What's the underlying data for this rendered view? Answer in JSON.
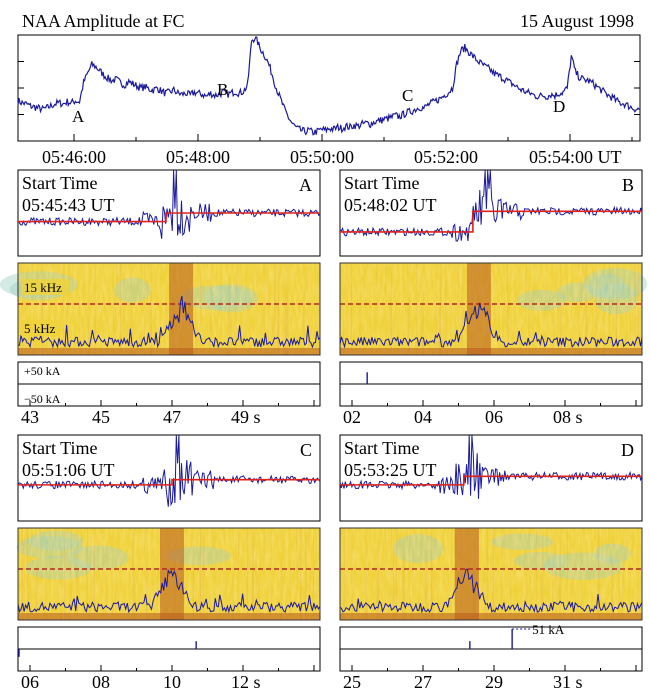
{
  "chart_data": [
    {
      "type": "line",
      "title": "NAA Amplitude at FC",
      "date": "15 August 1998",
      "x_ticks": [
        "05:46:00",
        "05:48:00",
        "05:50:00",
        "05:52:00",
        "05:54:00 UT"
      ],
      "event_labels": [
        "A",
        "B",
        "C",
        "D"
      ],
      "series": [
        {
          "values": [
            0.38,
            0.36,
            0.35,
            0.33,
            0.32,
            0.31,
            0.3,
            0.31,
            0.33,
            0.35,
            0.36,
            0.35,
            0.37,
            0.36,
            0.38,
            0.37,
            0.55,
            0.64,
            0.72,
            0.7,
            0.66,
            0.62,
            0.59,
            0.57,
            0.58,
            0.55,
            0.53,
            0.56,
            0.54,
            0.52,
            0.5,
            0.51,
            0.49,
            0.48,
            0.5,
            0.47,
            0.45,
            0.46,
            0.48,
            0.45,
            0.44,
            0.45,
            0.43,
            0.46,
            0.45,
            0.44,
            0.42,
            0.45,
            0.43,
            0.44,
            0.46,
            0.44,
            0.45,
            0.47,
            0.45,
            0.47,
            0.52,
            0.95,
            0.98,
            0.88,
            0.82,
            0.74,
            0.63,
            0.5,
            0.4,
            0.3,
            0.22,
            0.16,
            0.12,
            0.1,
            0.09,
            0.1,
            0.08,
            0.09,
            0.11,
            0.1,
            0.12,
            0.11,
            0.13,
            0.12,
            0.14,
            0.13,
            0.15,
            0.14,
            0.16,
            0.17,
            0.16,
            0.18,
            0.19,
            0.2,
            0.21,
            0.22,
            0.24,
            0.23,
            0.25,
            0.27,
            0.28,
            0.3,
            0.32,
            0.31,
            0.34,
            0.36,
            0.38,
            0.4,
            0.43,
            0.46,
            0.5,
            0.72,
            0.85,
            0.88,
            0.84,
            0.8,
            0.76,
            0.73,
            0.7,
            0.68,
            0.64,
            0.62,
            0.6,
            0.58,
            0.55,
            0.53,
            0.5,
            0.48,
            0.46,
            0.45,
            0.43,
            0.42,
            0.43,
            0.42,
            0.44,
            0.43,
            0.45,
            0.46,
            0.5,
            0.8,
            0.65,
            0.6,
            0.58,
            0.57,
            0.55,
            0.52,
            0.49,
            0.46,
            0.43,
            0.41,
            0.38,
            0.36,
            0.35,
            0.33,
            0.31,
            0.3
          ]
        }
      ],
      "color": "#1a1a9a"
    },
    {
      "type": "panel_group",
      "panels": [
        {
          "label": "A",
          "start_label": "Start Time",
          "start_time": "05:45:43 UT",
          "x_ticks": [
            "43",
            "45",
            "47",
            "49 s"
          ],
          "freq_labels": [
            "15 kHz",
            "5 kHz"
          ],
          "kA_labels": [
            "+50 kA",
            "−50 kA"
          ],
          "amplitude_level_before": 0.6,
          "amplitude_level_after": 0.5,
          "step_fraction": 0.49,
          "burst_fraction": 0.52,
          "sferic_fraction": 0.54,
          "strokes": []
        },
        {
          "label": "B",
          "start_label": "Start Time",
          "start_time": "05:48:02 UT",
          "x_ticks": [
            "02",
            "04",
            "06",
            "08 s"
          ],
          "freq_labels": [],
          "kA_labels": [],
          "amplitude_level_before": 0.72,
          "amplitude_level_after": 0.48,
          "step_fraction": 0.44,
          "burst_fraction": 0.49,
          "sferic_fraction": 0.46,
          "strokes": [
            {
              "t_fraction": 0.09,
              "kA": 30
            }
          ]
        },
        {
          "label": "C",
          "start_label": "Start Time",
          "start_time": "05:51:06 UT",
          "x_ticks": [
            "06",
            "08",
            "10",
            "12 s"
          ],
          "freq_labels": [],
          "kA_labels": [],
          "amplitude_level_before": 0.58,
          "amplitude_level_after": 0.52,
          "step_fraction": 0.51,
          "burst_fraction": 0.53,
          "sferic_fraction": 0.51,
          "strokes": [
            {
              "t_fraction": 0.0,
              "kA": -20
            },
            {
              "t_fraction": 0.59,
              "kA": 20
            }
          ]
        },
        {
          "label": "D",
          "start_label": "Start Time",
          "start_time": "05:53:25 UT",
          "x_ticks": [
            "25",
            "27",
            "29",
            "31 s"
          ],
          "freq_labels": [],
          "kA_labels": [],
          "amplitude_level_before": 0.58,
          "amplitude_level_after": 0.48,
          "step_fraction": 0.41,
          "burst_fraction": 0.43,
          "sferic_fraction": 0.42,
          "strokes": [
            {
              "t_fraction": 0.43,
              "kA": 20
            },
            {
              "t_fraction": 0.57,
              "kA": 51
            }
          ],
          "annotation": "51 kA"
        }
      ],
      "colors": {
        "amplitude": "#1a1a9a",
        "reference_line": "#e0221a",
        "spectrogram_base": "#f0d23a",
        "spectrogram_cool": "#9fd0c4",
        "spectrogram_hot": "#b85a1e",
        "dashed_line": "#b02a1a"
      }
    }
  ]
}
